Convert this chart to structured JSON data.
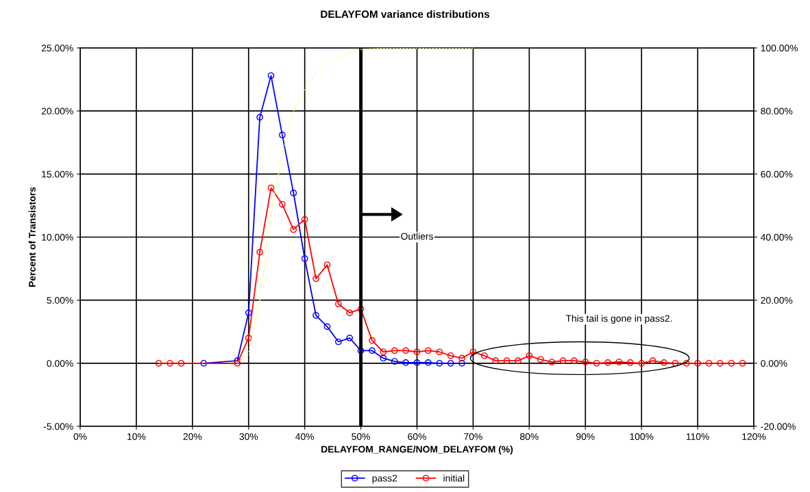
{
  "chart_data": {
    "type": "line",
    "title": "DELAYFOM variance distributions",
    "xlabel": "DELAYFOM_RANGE/NOM_DELAYFOM (%)",
    "ylabel": "Percent of Transistors",
    "series": [
      {
        "name": "pass2",
        "color": "#0000ff",
        "marker": "circle",
        "x": [
          22,
          28,
          30,
          32,
          34,
          36,
          38,
          40,
          42,
          44,
          46,
          48,
          50,
          52,
          54,
          56,
          58,
          60,
          62,
          64,
          66,
          68
        ],
        "values": [
          0.0,
          0.2,
          4.0,
          19.5,
          22.8,
          18.1,
          13.5,
          8.3,
          3.8,
          2.9,
          1.7,
          2.0,
          1.0,
          1.0,
          0.4,
          0.15,
          0.05,
          0.05,
          0.05,
          0.0,
          0.0,
          0.0
        ]
      },
      {
        "name": "initial",
        "color": "#ff0000",
        "marker": "circle",
        "x": [
          14,
          16,
          18,
          28,
          30,
          32,
          34,
          36,
          38,
          40,
          42,
          44,
          46,
          48,
          50,
          52,
          54,
          56,
          58,
          60,
          62,
          64,
          66,
          68,
          70,
          72,
          74,
          76,
          78,
          80,
          82,
          84,
          86,
          88,
          90,
          92,
          94,
          96,
          98,
          100,
          102,
          104,
          106,
          108,
          110,
          112,
          114,
          116,
          118
        ],
        "values": [
          0,
          0,
          0,
          0,
          2.0,
          8.8,
          13.9,
          12.6,
          10.6,
          11.4,
          6.7,
          7.8,
          4.7,
          4.0,
          4.3,
          1.8,
          0.9,
          1.0,
          1.0,
          0.9,
          1.0,
          0.9,
          0.6,
          0.4,
          0.9,
          0.6,
          0.2,
          0.2,
          0.2,
          0.6,
          0.3,
          0.1,
          0.2,
          0.2,
          0.1,
          0.0,
          0.05,
          0.1,
          0.05,
          0.0,
          0.2,
          0.05,
          0.0,
          0.0,
          0.0,
          0.0,
          0.0,
          0.0,
          0.0
        ]
      },
      {
        "color": "#ffff66",
        "axis": "y2",
        "marker": "none",
        "line_style": "dotted",
        "x": [
          28,
          30,
          32,
          34,
          36,
          38,
          40,
          42,
          44,
          46,
          48,
          50,
          55,
          60,
          70
        ],
        "values": [
          0,
          3,
          20,
          48,
          66,
          80,
          87,
          92,
          95,
          97,
          98.5,
          99.5,
          100,
          100,
          100
        ]
      }
    ],
    "xlim": [
      0,
      120
    ],
    "xticks": [
      {
        "value": 0,
        "label": "0%"
      },
      {
        "value": 10,
        "label": "10%"
      },
      {
        "value": 20,
        "label": "20%"
      },
      {
        "value": 30,
        "label": "30%"
      },
      {
        "value": 40,
        "label": "40%"
      },
      {
        "value": 50,
        "label": "50%"
      },
      {
        "value": 60,
        "label": "60%"
      },
      {
        "value": 70,
        "label": "70%"
      },
      {
        "value": 80,
        "label": "80%"
      },
      {
        "value": 90,
        "label": "90%"
      },
      {
        "value": 100,
        "label": "100%"
      },
      {
        "value": 110,
        "label": "110%"
      },
      {
        "value": 120,
        "label": "120%"
      }
    ],
    "ylim": [
      -5,
      25
    ],
    "yticks": [
      {
        "value": -5,
        "label": "-5.00%"
      },
      {
        "value": 0,
        "label": "0.00%"
      },
      {
        "value": 5,
        "label": "5.00%"
      },
      {
        "value": 10,
        "label": "10.00%"
      },
      {
        "value": 15,
        "label": "15.00%"
      },
      {
        "value": 20,
        "label": "20.00%"
      },
      {
        "value": 25,
        "label": "25.00%"
      }
    ],
    "y2lim": [
      -20,
      100
    ],
    "y2ticks": [
      {
        "value": -20,
        "label": "-20.00%"
      },
      {
        "value": 0,
        "label": "0.00%"
      },
      {
        "value": 20,
        "label": "20.00%"
      },
      {
        "value": 40,
        "label": "40.00%"
      },
      {
        "value": 60,
        "label": "60.00%"
      },
      {
        "value": 80,
        "label": "80.00%"
      },
      {
        "value": 100,
        "label": "100.00%"
      }
    ],
    "ref_lines": [
      {
        "axis": "x",
        "value": 50,
        "color": "#000000"
      }
    ],
    "annotations": [
      "Outliers",
      "This tail is gone in pass2."
    ],
    "grid": true,
    "legend": "bottom"
  }
}
